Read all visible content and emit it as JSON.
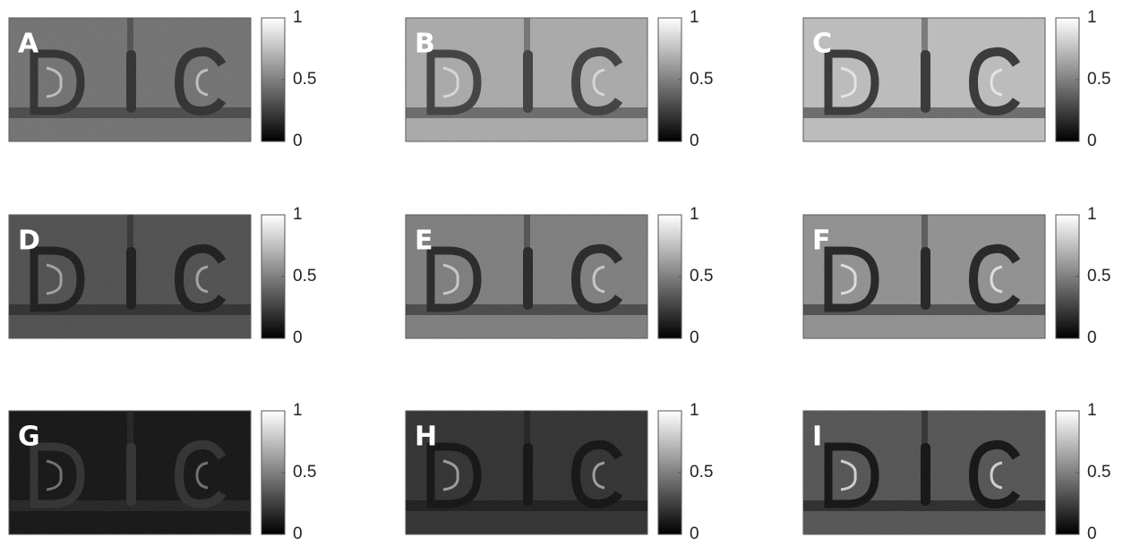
{
  "panels": [
    {
      "label": "A"
    },
    {
      "label": "B"
    },
    {
      "label": "C"
    },
    {
      "label": "D"
    },
    {
      "label": "E"
    },
    {
      "label": "F"
    },
    {
      "label": "G"
    },
    {
      "label": "H"
    },
    {
      "label": "I"
    }
  ],
  "colorbar": {
    "clim": [
      0,
      1
    ],
    "ticks": [
      0,
      0.5,
      1
    ]
  }
}
